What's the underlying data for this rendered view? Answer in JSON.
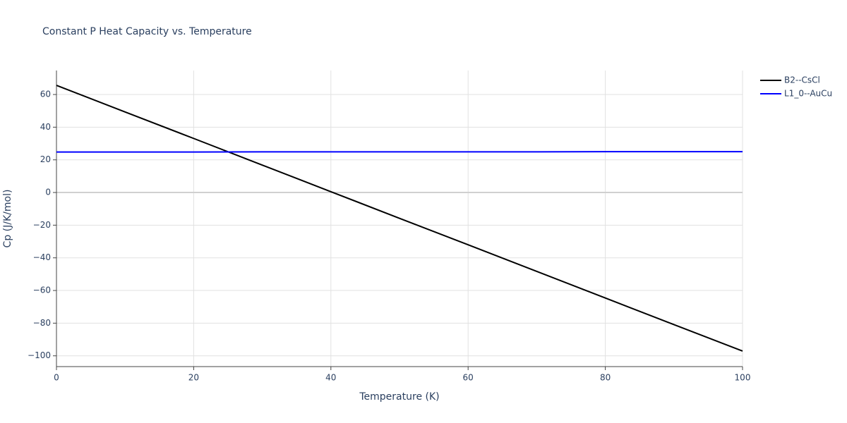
{
  "chart_data": {
    "type": "line",
    "title": "Constant P Heat Capacity vs. Temperature",
    "x_label": "Temperature (K)",
    "y_label": "Cp (J/K/mol)",
    "x": [
      0,
      10,
      20,
      30,
      40,
      50,
      60,
      70,
      80,
      90,
      100
    ],
    "series": [
      {
        "name": "B2--CsCl",
        "color": "#000000",
        "values": [
          65.6,
          49.3,
          33.1,
          16.8,
          0.5,
          -15.8,
          -32.0,
          -48.3,
          -64.6,
          -80.9,
          -97.1
        ]
      },
      {
        "name": "L1_0--AuCu",
        "color": "#0000ff",
        "values": [
          24.8,
          24.8,
          24.8,
          24.9,
          24.9,
          24.9,
          24.9,
          24.9,
          25.0,
          25.0,
          25.0
        ]
      }
    ],
    "xlim": [
      0,
      100
    ],
    "xticks": [
      0,
      20,
      40,
      60,
      80,
      100
    ],
    "ylim": [
      -106.6,
      74.7
    ],
    "yticks": [
      {
        "value": -100,
        "label": "−100"
      },
      {
        "value": -80,
        "label": "−80"
      },
      {
        "value": -60,
        "label": "−60"
      },
      {
        "value": -40,
        "label": "−40"
      },
      {
        "value": -20,
        "label": "−20"
      },
      0,
      20,
      40,
      60
    ],
    "grid": true,
    "legend": "right"
  }
}
